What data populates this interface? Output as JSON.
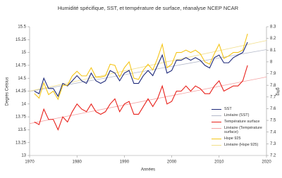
{
  "chart_data": {
    "type": "line",
    "title": "Humidité spécifique, SST, et température de surface, réanalyse NCEP NCAR",
    "x_label": "Années",
    "y_label": "Degrés Celsius",
    "y2_label": "g/kg",
    "x": [
      1971,
      1972,
      1973,
      1974,
      1975,
      1976,
      1977,
      1978,
      1979,
      1980,
      1981,
      1982,
      1983,
      1984,
      1985,
      1986,
      1987,
      1988,
      1989,
      1990,
      1991,
      1992,
      1993,
      1994,
      1995,
      1996,
      1997,
      1998,
      1999,
      2000,
      2001,
      2002,
      2003,
      2004,
      2005,
      2006,
      2007,
      2008,
      2009,
      2010,
      2011,
      2012,
      2013,
      2014,
      2015,
      2016
    ],
    "xlim": [
      1970,
      2020
    ],
    "xticks": [
      1970,
      1980,
      1990,
      2000,
      2010,
      2020
    ],
    "ylim": [
      13,
      15.5
    ],
    "yticks": [
      13,
      13.25,
      13.5,
      13.75,
      14,
      14.25,
      14.5,
      14.75,
      15,
      15.25,
      15.5
    ],
    "y2lim": [
      7.2,
      8.3
    ],
    "y2ticks": [
      7.2,
      7.3,
      7.4,
      7.5,
      7.6,
      7.7,
      7.8,
      7.9,
      8,
      8.1,
      8.2,
      8.3
    ],
    "grid": false,
    "series": [
      {
        "name": "SST",
        "color": "#1f2a7a",
        "values": [
          14.25,
          14.2,
          14.5,
          14.3,
          14.3,
          14.15,
          14.4,
          14.35,
          14.45,
          14.55,
          14.45,
          14.4,
          14.6,
          14.45,
          14.4,
          14.45,
          14.65,
          14.6,
          14.45,
          14.6,
          14.65,
          14.4,
          14.4,
          14.55,
          14.65,
          14.55,
          14.75,
          14.95,
          14.6,
          14.65,
          14.85,
          14.85,
          14.9,
          14.85,
          14.9,
          14.85,
          14.75,
          14.7,
          14.9,
          14.95,
          14.8,
          14.8,
          14.9,
          14.95,
          15.0,
          15.2
        ]
      },
      {
        "name": "Température surface",
        "color": "#e8201a",
        "values": [
          13.65,
          13.6,
          13.9,
          13.7,
          13.7,
          13.5,
          13.75,
          13.65,
          13.85,
          14.0,
          13.9,
          13.85,
          14.0,
          13.85,
          13.8,
          13.85,
          14.0,
          14.1,
          13.85,
          14.0,
          14.05,
          13.8,
          13.8,
          13.95,
          14.1,
          13.95,
          14.1,
          14.35,
          14.0,
          14.05,
          14.25,
          14.25,
          14.35,
          14.25,
          14.35,
          14.3,
          14.2,
          14.2,
          14.35,
          14.45,
          14.25,
          14.3,
          14.35,
          14.35,
          14.45,
          14.75
        ]
      },
      {
        "name": "Hspe 925",
        "color": "#f5c518",
        "axis": "y2",
        "values": [
          7.73,
          7.69,
          7.82,
          7.72,
          7.75,
          7.68,
          7.8,
          7.8,
          7.88,
          7.92,
          7.88,
          7.88,
          7.95,
          7.87,
          7.87,
          7.88,
          7.98,
          7.97,
          7.87,
          7.95,
          8.0,
          7.86,
          7.85,
          7.93,
          7.98,
          7.93,
          8.03,
          8.15,
          7.95,
          7.98,
          8.08,
          8.08,
          8.1,
          8.08,
          8.1,
          8.07,
          8.0,
          7.98,
          8.07,
          8.15,
          8.03,
          8.05,
          8.08,
          8.08,
          8.1,
          8.24
        ]
      }
    ],
    "trendlines": [
      {
        "name": "Linéaire (SST)",
        "color": "#b4b9c9"
      },
      {
        "name": "Linéaire (Température surface)",
        "color": "#f4a3a3"
      },
      {
        "name": "Linéaire (Hspe 925)",
        "color": "#f1de8a"
      }
    ]
  }
}
